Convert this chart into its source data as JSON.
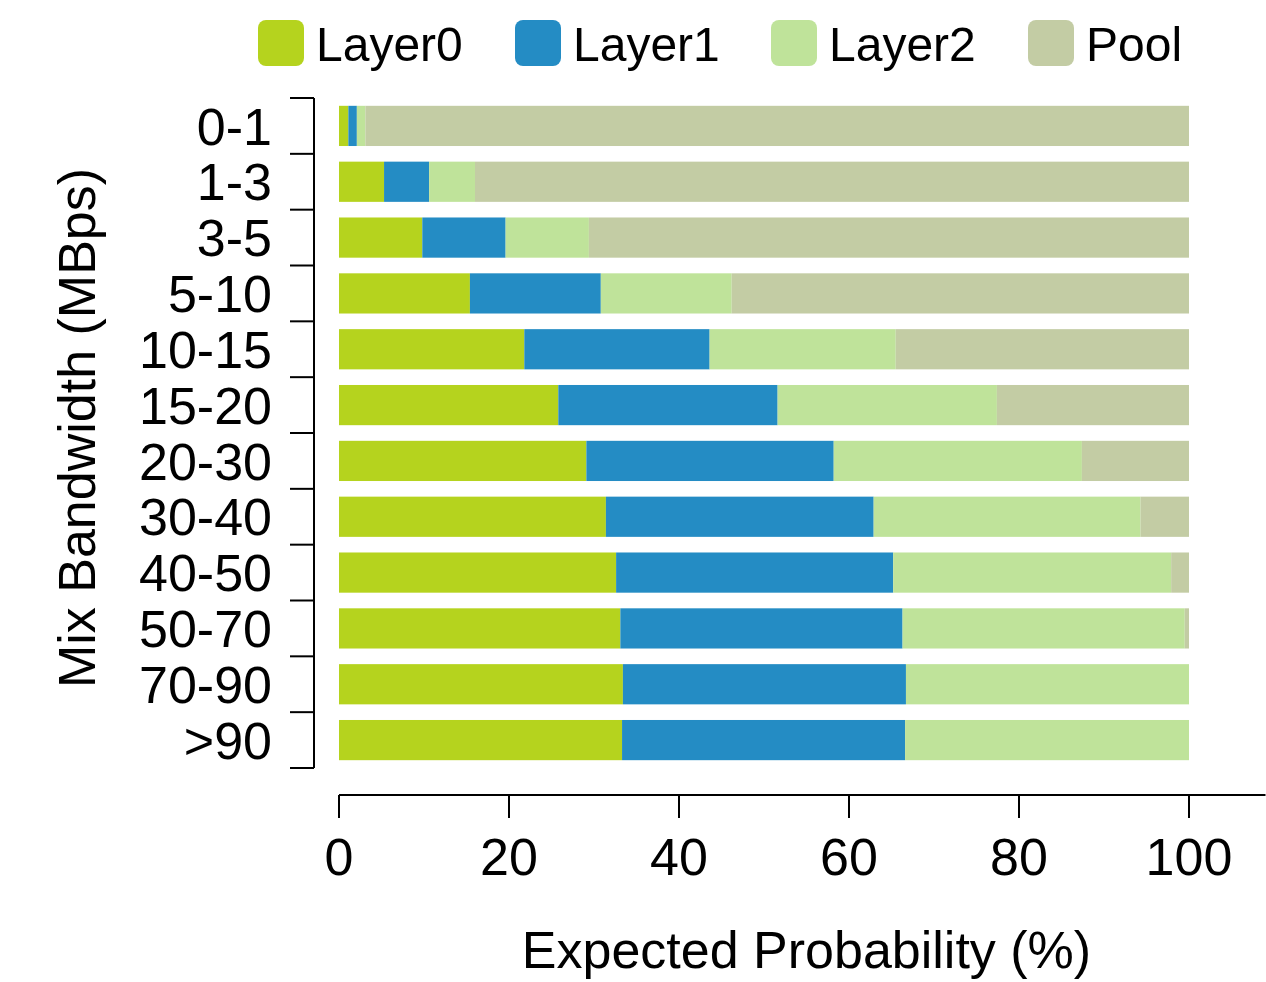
{
  "chart_data": {
    "type": "bar",
    "orientation": "horizontal",
    "stacked": true,
    "xlabel": "Expected Probability (%)",
    "ylabel": "Mix Bandwidth (MBps)",
    "categories": [
      "0-1",
      "1-3",
      "3-5",
      "5-10",
      "10-15",
      "15-20",
      "20-30",
      "30-40",
      "40-50",
      "50-70",
      "70-90",
      ">90"
    ],
    "series": [
      {
        "name": "Layer0",
        "color": "#b5d31e",
        "values": [
          1.1,
          5.3,
          9.8,
          15.4,
          21.8,
          25.8,
          29.1,
          31.4,
          32.6,
          33.1,
          33.4,
          33.3
        ]
      },
      {
        "name": "Layer1",
        "color": "#248cc4",
        "values": [
          1.0,
          5.3,
          9.8,
          15.4,
          21.8,
          25.8,
          29.1,
          31.5,
          32.6,
          33.2,
          33.3,
          33.3
        ]
      },
      {
        "name": "Layer2",
        "color": "#bfe39a",
        "values": [
          1.0,
          5.4,
          9.8,
          15.4,
          21.9,
          25.8,
          29.2,
          31.4,
          32.7,
          33.2,
          33.3,
          33.4
        ]
      },
      {
        "name": "Pool",
        "color": "#c3cca4",
        "values": [
          96.9,
          84.0,
          70.6,
          53.8,
          34.5,
          22.6,
          12.6,
          5.7,
          2.1,
          0.5,
          0,
          0
        ]
      }
    ],
    "xlim": [
      0,
      109
    ],
    "xticks": [
      0,
      20,
      40,
      60,
      80,
      100
    ],
    "legend": "top",
    "grid": false
  }
}
